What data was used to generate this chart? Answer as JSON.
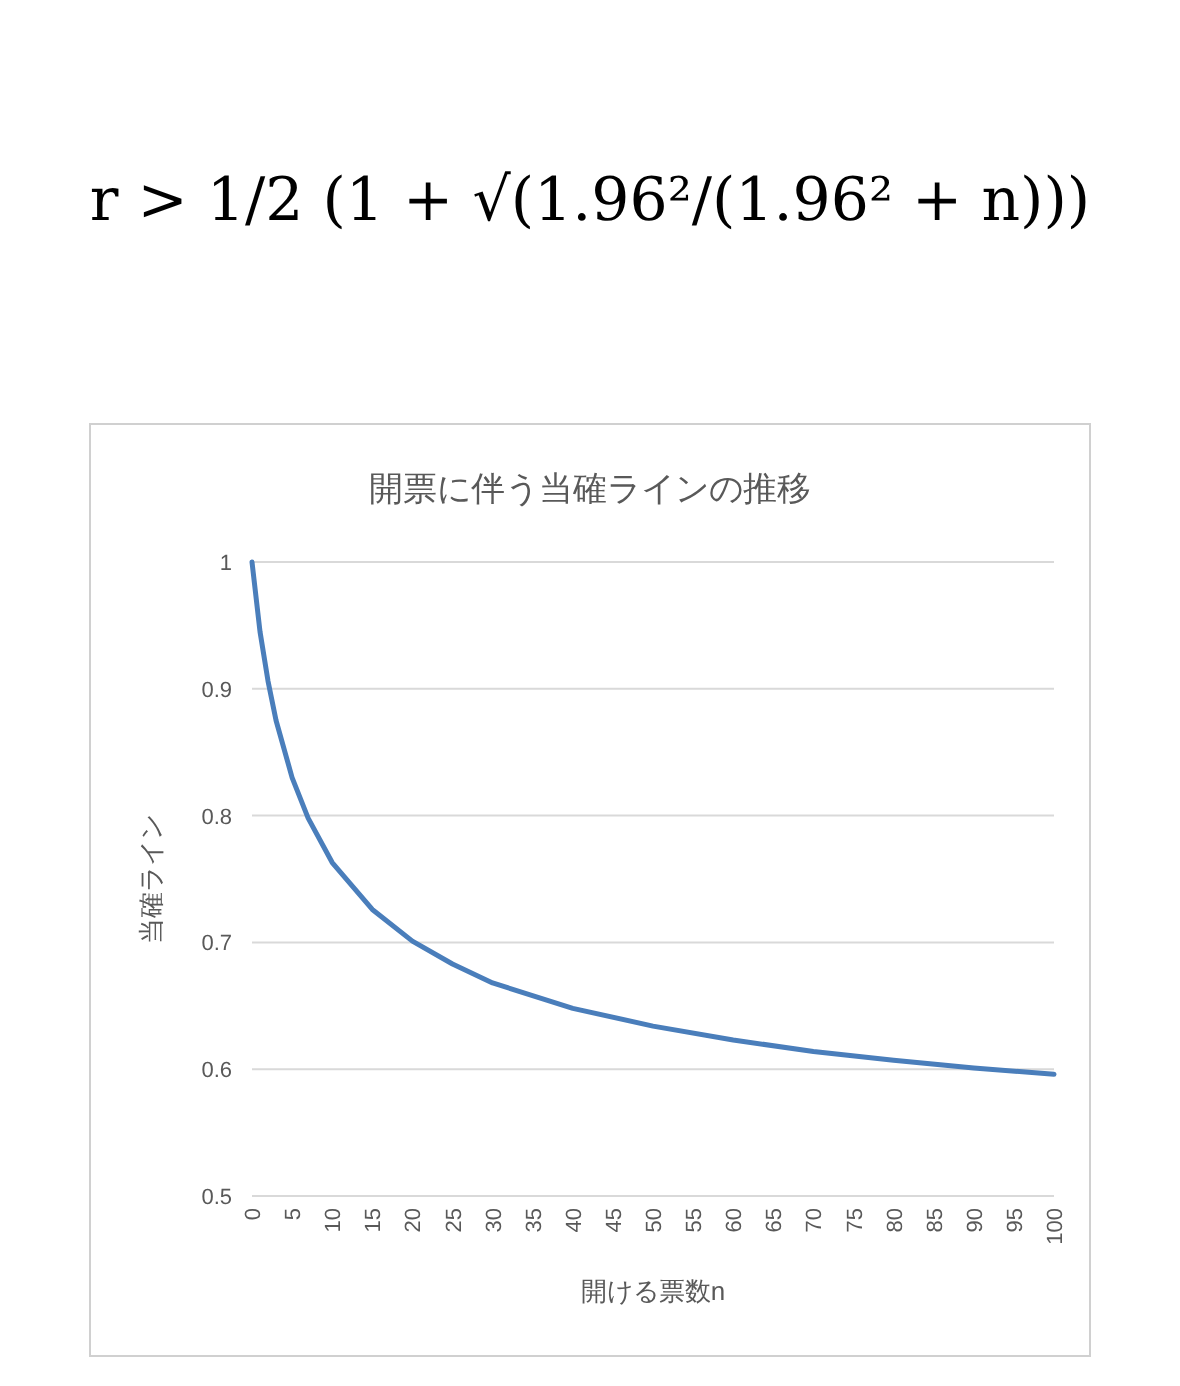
{
  "chart_data": {
    "type": "line",
    "title": "開票に伴う当確ラインの推移",
    "xlabel": "開ける票数n",
    "ylabel": "当確ライン",
    "annotations": [
      "r > 1/2 (1 + √(1.96²/(1.96² + n)))"
    ],
    "x": [
      0,
      1,
      2,
      3,
      5,
      7,
      10,
      15,
      20,
      25,
      30,
      40,
      50,
      60,
      70,
      80,
      90,
      100
    ],
    "series": [
      {
        "color": "#4a7ebb",
        "values": [
          1,
          0.945,
          0.906,
          0.875,
          0.83,
          0.798,
          0.763,
          0.726,
          0.701,
          0.683,
          0.668,
          0.648,
          0.634,
          0.623,
          0.614,
          0.607,
          0.601,
          0.596
        ]
      }
    ],
    "xlim": [
      0,
      100
    ],
    "xticks": [
      0,
      5,
      10,
      15,
      20,
      25,
      30,
      35,
      40,
      45,
      50,
      55,
      60,
      65,
      70,
      75,
      80,
      85,
      90,
      95,
      100
    ],
    "ylim": [
      0.5,
      1
    ],
    "yticks": [
      0.5,
      0.6,
      0.7,
      0.8,
      0.9,
      1
    ],
    "grid": "y",
    "marker": "none",
    "line_style": "solid"
  }
}
